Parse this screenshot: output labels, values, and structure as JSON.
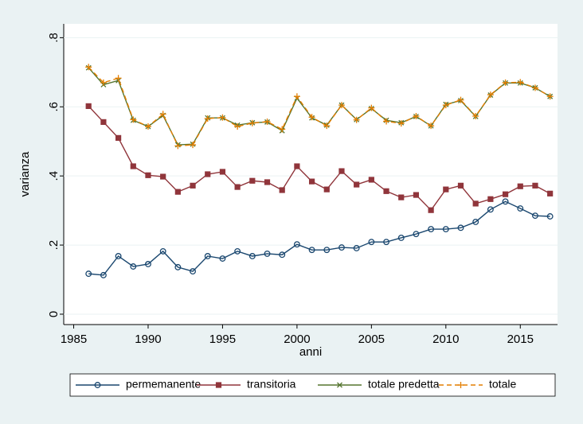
{
  "chart_data": {
    "type": "line",
    "xlabel": "anni",
    "ylabel": "varianza",
    "x": [
      1986,
      1987,
      1988,
      1989,
      1990,
      1991,
      1992,
      1993,
      1994,
      1995,
      1996,
      1997,
      1998,
      1999,
      2000,
      2001,
      2002,
      2003,
      2004,
      2005,
      2006,
      2007,
      2008,
      2009,
      2010,
      2011,
      2012,
      2013,
      2014,
      2015,
      2016,
      2017
    ],
    "series": [
      {
        "name": "permemanente",
        "color": "#1a476f",
        "marker": "circle",
        "dashed": false,
        "values": [
          0.117,
          0.113,
          0.168,
          0.138,
          0.145,
          0.182,
          0.136,
          0.124,
          0.168,
          0.161,
          0.182,
          0.168,
          0.175,
          0.172,
          0.202,
          0.186,
          0.186,
          0.193,
          0.191,
          0.209,
          0.209,
          0.221,
          0.232,
          0.246,
          0.246,
          0.25,
          0.267,
          0.303,
          0.326,
          0.306,
          0.285,
          0.283
        ]
      },
      {
        "name": "transitoria",
        "color": "#90353b",
        "marker": "square",
        "dashed": false,
        "values": [
          0.602,
          0.556,
          0.51,
          0.428,
          0.402,
          0.398,
          0.354,
          0.372,
          0.405,
          0.412,
          0.368,
          0.386,
          0.382,
          0.359,
          0.428,
          0.384,
          0.361,
          0.414,
          0.375,
          0.389,
          0.356,
          0.338,
          0.345,
          0.301,
          0.361,
          0.372,
          0.32,
          0.333,
          0.347,
          0.37,
          0.372,
          0.349
        ]
      },
      {
        "name": "totale predetta",
        "color": "#55752f",
        "marker": "x",
        "dashed": false,
        "values": [
          0.713,
          0.664,
          0.676,
          0.561,
          0.543,
          0.575,
          0.49,
          0.492,
          0.568,
          0.568,
          0.547,
          0.554,
          0.556,
          0.531,
          0.625,
          0.568,
          0.547,
          0.605,
          0.563,
          0.595,
          0.561,
          0.554,
          0.572,
          0.545,
          0.607,
          0.618,
          0.572,
          0.634,
          0.669,
          0.669,
          0.655,
          0.63
        ]
      },
      {
        "name": "totale",
        "color": "#e37e00",
        "marker": "plus",
        "dashed": true,
        "values": [
          0.715,
          0.67,
          0.683,
          0.563,
          0.543,
          0.579,
          0.487,
          0.49,
          0.566,
          0.569,
          0.543,
          0.553,
          0.557,
          0.535,
          0.63,
          0.57,
          0.545,
          0.605,
          0.562,
          0.597,
          0.558,
          0.552,
          0.573,
          0.545,
          0.605,
          0.62,
          0.573,
          0.635,
          0.67,
          0.671,
          0.655,
          0.63
        ]
      }
    ],
    "xlim": [
      1984.33,
      2017.5
    ],
    "xticks": [
      1985,
      1990,
      1995,
      2000,
      2005,
      2010,
      2015
    ],
    "ylim": [
      -0.03,
      0.84
    ],
    "yticks": [
      0,
      {
        "value": 0.2,
        "label": ".2"
      },
      {
        "value": 0.4,
        "label": ".4"
      },
      {
        "value": 0.6,
        "label": ".6"
      },
      {
        "value": 0.8,
        "label": ".8"
      }
    ],
    "grid": true,
    "legend": "bottom"
  }
}
